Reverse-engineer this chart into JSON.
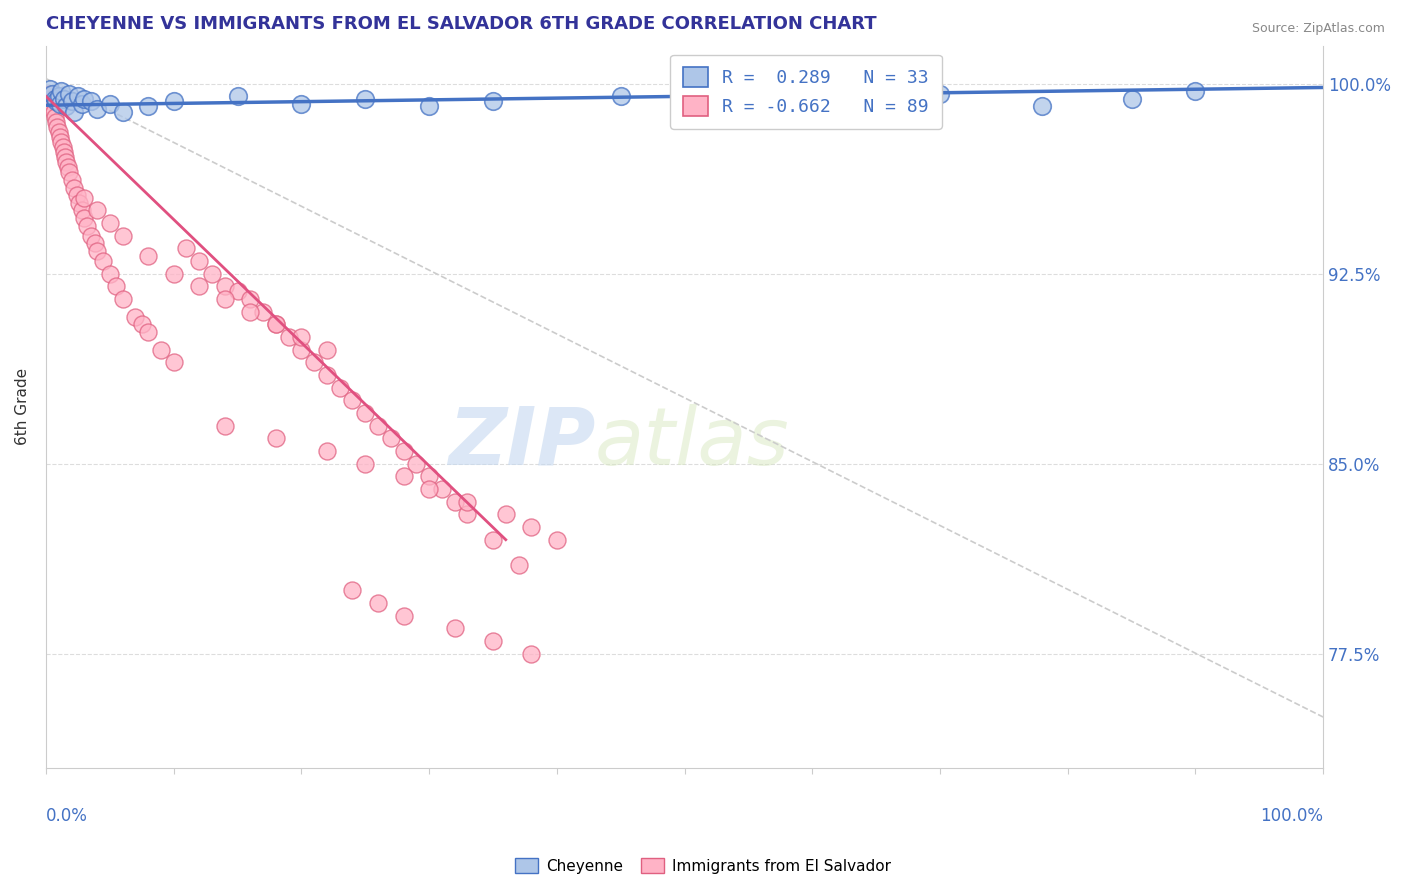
{
  "title": "CHEYENNE VS IMMIGRANTS FROM EL SALVADOR 6TH GRADE CORRELATION CHART",
  "source": "Source: ZipAtlas.com",
  "ylabel": "6th Grade",
  "y_ticks": [
    77.5,
    85.0,
    92.5,
    100.0
  ],
  "y_tick_labels": [
    "77.5%",
    "85.0%",
    "92.5%",
    "100.0%"
  ],
  "x_ticks": [
    0,
    10,
    20,
    30,
    40,
    50,
    60,
    70,
    80,
    90,
    100
  ],
  "watermark_zip": "ZIP",
  "watermark_atlas": "atlas",
  "legend_r1": "R =  0.289   N = 33",
  "legend_r2": "R = -0.662   N = 89",
  "blue_color": "#AEC6E8",
  "blue_edge_color": "#4472C4",
  "pink_color": "#FFB3C6",
  "pink_edge_color": "#E06080",
  "blue_line_color": "#4472C4",
  "pink_line_color": "#E05080",
  "blue_scatter_x": [
    0.3,
    0.5,
    0.7,
    0.8,
    1.0,
    1.1,
    1.2,
    1.4,
    1.6,
    1.8,
    2.0,
    2.2,
    2.5,
    2.8,
    3.0,
    3.5,
    4.0,
    5.0,
    6.0,
    8.0,
    10.0,
    15.0,
    20.0,
    25.0,
    30.0,
    35.0,
    45.0,
    55.0,
    65.0,
    70.0,
    78.0,
    85.0,
    90.0
  ],
  "blue_scatter_y": [
    99.8,
    99.6,
    99.4,
    99.3,
    99.5,
    99.2,
    99.7,
    99.4,
    99.1,
    99.6,
    99.3,
    98.9,
    99.5,
    99.2,
    99.4,
    99.3,
    99.0,
    99.2,
    98.9,
    99.1,
    99.3,
    99.5,
    99.2,
    99.4,
    99.1,
    99.3,
    99.5,
    99.2,
    99.4,
    99.6,
    99.1,
    99.4,
    99.7
  ],
  "pink_scatter_x": [
    0.2,
    0.3,
    0.4,
    0.5,
    0.6,
    0.7,
    0.8,
    0.9,
    1.0,
    1.1,
    1.2,
    1.3,
    1.4,
    1.5,
    1.6,
    1.7,
    1.8,
    2.0,
    2.2,
    2.4,
    2.6,
    2.8,
    3.0,
    3.2,
    3.5,
    3.8,
    4.0,
    4.5,
    5.0,
    5.5,
    6.0,
    7.0,
    7.5,
    8.0,
    9.0,
    10.0,
    11.0,
    12.0,
    13.0,
    14.0,
    15.0,
    16.0,
    17.0,
    18.0,
    19.0,
    20.0,
    21.0,
    22.0,
    23.0,
    24.0,
    25.0,
    26.0,
    27.0,
    28.0,
    29.0,
    30.0,
    31.0,
    32.0,
    33.0,
    35.0,
    37.0,
    3.0,
    4.0,
    5.0,
    6.0,
    8.0,
    10.0,
    12.0,
    14.0,
    16.0,
    18.0,
    20.0,
    22.0,
    14.0,
    18.0,
    22.0,
    25.0,
    28.0,
    30.0,
    33.0,
    36.0,
    38.0,
    40.0,
    24.0,
    26.0,
    28.0,
    32.0,
    35.0,
    38.0
  ],
  "pink_scatter_y": [
    99.6,
    99.4,
    99.3,
    99.1,
    98.9,
    98.7,
    98.5,
    98.3,
    98.1,
    97.9,
    97.7,
    97.5,
    97.3,
    97.1,
    96.9,
    96.7,
    96.5,
    96.2,
    95.9,
    95.6,
    95.3,
    95.0,
    94.7,
    94.4,
    94.0,
    93.7,
    93.4,
    93.0,
    92.5,
    92.0,
    91.5,
    90.8,
    90.5,
    90.2,
    89.5,
    89.0,
    93.5,
    93.0,
    92.5,
    92.0,
    91.8,
    91.5,
    91.0,
    90.5,
    90.0,
    89.5,
    89.0,
    88.5,
    88.0,
    87.5,
    87.0,
    86.5,
    86.0,
    85.5,
    85.0,
    84.5,
    84.0,
    83.5,
    83.0,
    82.0,
    81.0,
    95.5,
    95.0,
    94.5,
    94.0,
    93.2,
    92.5,
    92.0,
    91.5,
    91.0,
    90.5,
    90.0,
    89.5,
    86.5,
    86.0,
    85.5,
    85.0,
    84.5,
    84.0,
    83.5,
    83.0,
    82.5,
    82.0,
    80.0,
    79.5,
    79.0,
    78.5,
    78.0,
    77.5
  ],
  "blue_trendline_x": [
    0,
    100
  ],
  "blue_trendline_y": [
    99.15,
    99.85
  ],
  "pink_trendline_x": [
    0.0,
    36.0
  ],
  "pink_trendline_y": [
    99.5,
    82.0
  ],
  "diag_line_x": [
    0,
    100
  ],
  "diag_line_y": [
    100.2,
    75.0
  ],
  "ylim_bottom": 73.0,
  "ylim_top": 101.5,
  "figsize": [
    14.06,
    8.92
  ],
  "dpi": 100
}
